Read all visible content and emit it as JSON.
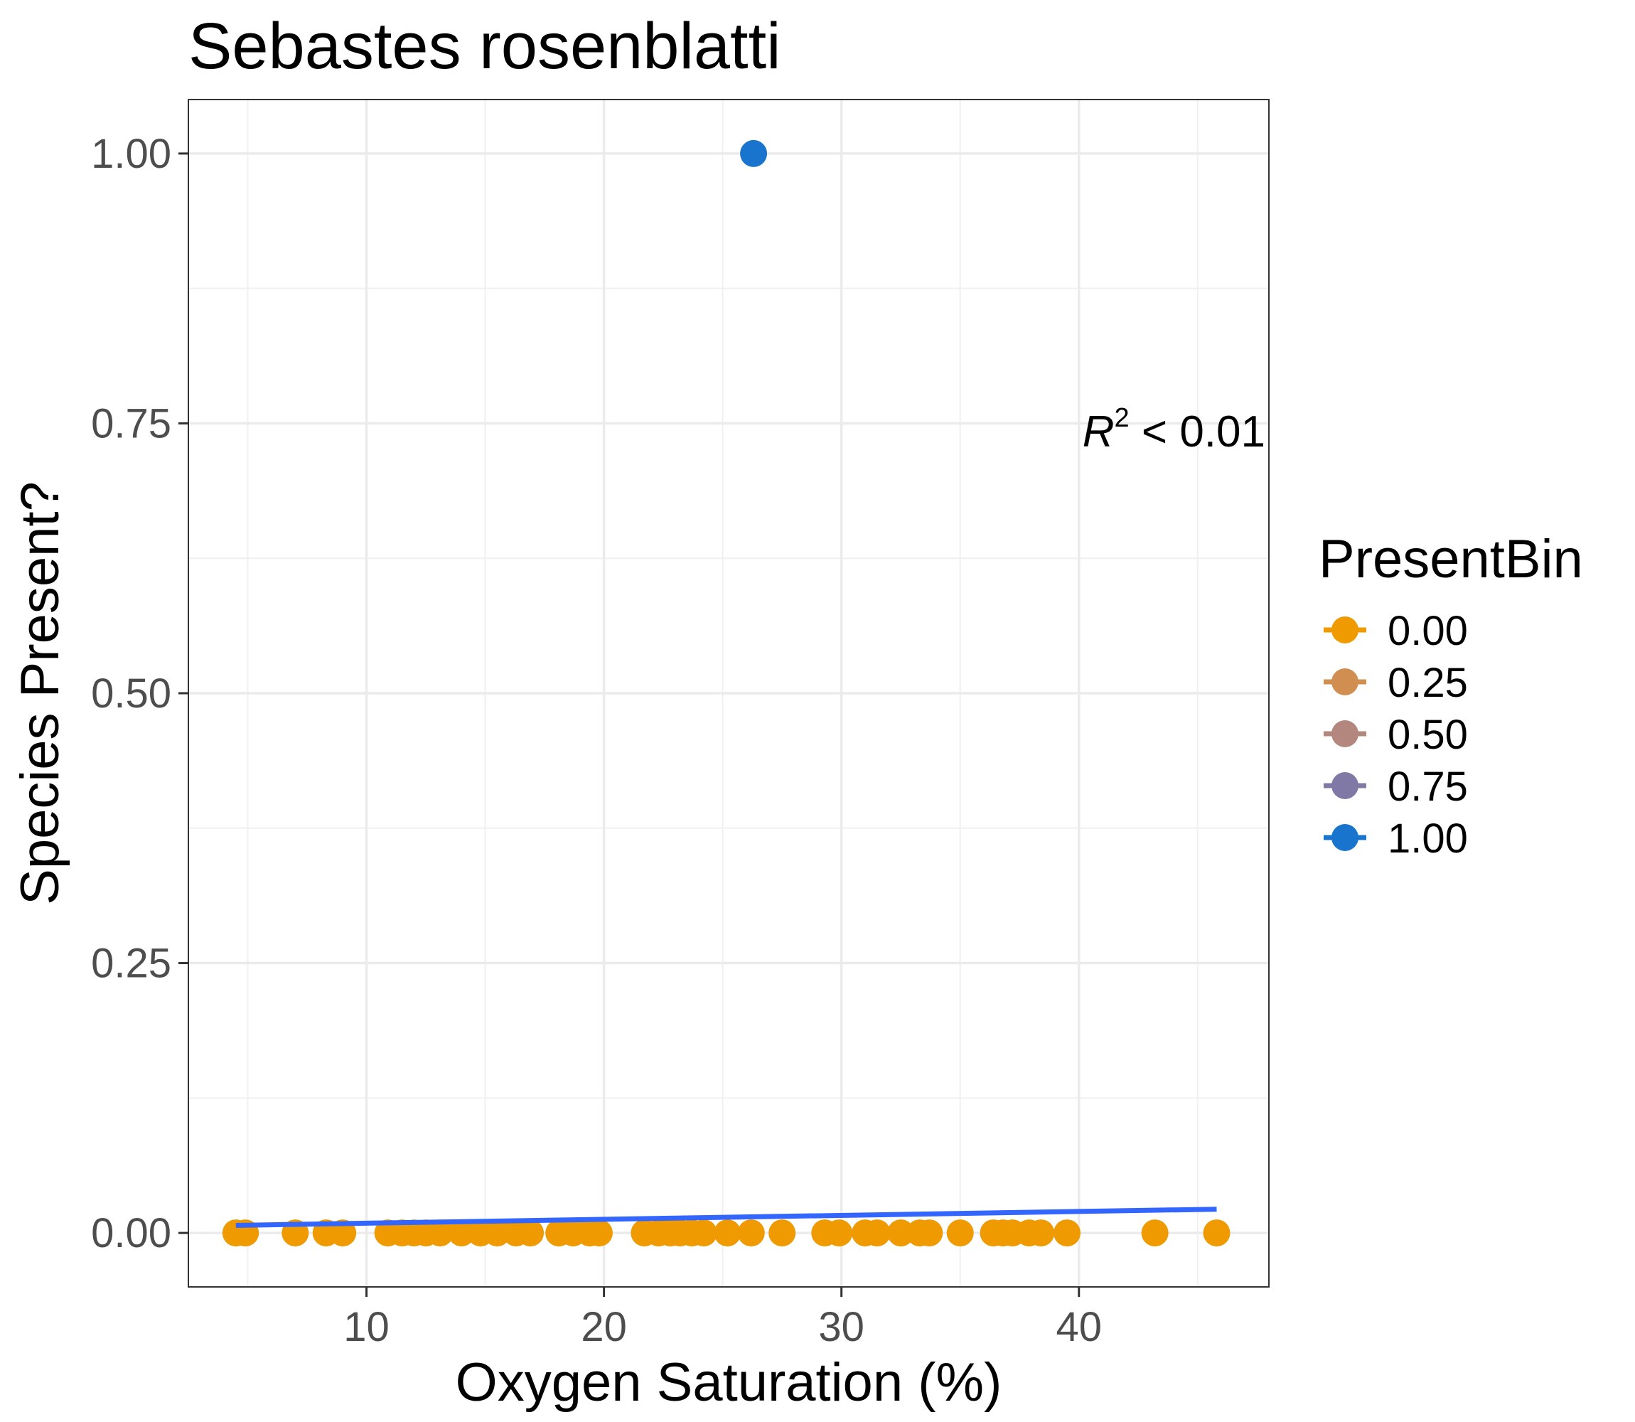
{
  "chart_data": {
    "type": "scatter",
    "title": "Sebastes rosenblatti",
    "xlabel": "Oxygen Saturation (%)",
    "ylabel": "Species Present?",
    "xlim": [
      2.5,
      48
    ],
    "ylim": [
      -0.05,
      1.05
    ],
    "x_ticks": [
      10,
      20,
      30,
      40
    ],
    "x_tick_labels": [
      "10",
      "20",
      "30",
      "40"
    ],
    "y_ticks": [
      0,
      0.25,
      0.5,
      0.75,
      1
    ],
    "y_tick_labels": [
      "0.00",
      "0.25",
      "0.50",
      "0.75",
      "1.00"
    ],
    "grid": true,
    "legend": {
      "title": "PresentBin",
      "placement": "right",
      "entries": [
        {
          "label": "0.00",
          "color": "#EE9A00"
        },
        {
          "label": "0.25",
          "color": "#D18E51"
        },
        {
          "label": "0.50",
          "color": "#B3877D"
        },
        {
          "label": "0.75",
          "color": "#8079A6"
        },
        {
          "label": "1.00",
          "color": "#1874CD"
        }
      ]
    },
    "annotation": {
      "r_letter": "R",
      "r_exponent": "2",
      "text": " < 0.01"
    },
    "points": {
      "x": [
        4.5,
        4.9,
        7.0,
        8.3,
        9.0,
        10.9,
        11.5,
        12.0,
        12.5,
        13.1,
        14.0,
        14.8,
        15.5,
        16.3,
        16.9,
        18.1,
        18.7,
        19.4,
        19.8,
        21.7,
        22.3,
        22.8,
        23.2,
        23.7,
        24.2,
        25.2,
        26.2,
        27.5,
        29.3,
        29.9,
        31.0,
        31.5,
        32.5,
        33.3,
        33.7,
        35.0,
        36.4,
        36.8,
        37.2,
        37.9,
        38.4,
        39.5,
        43.2,
        45.8,
        26.3
      ],
      "y": [
        0,
        0,
        0,
        0,
        0,
        0,
        0,
        0,
        0,
        0,
        0,
        0,
        0,
        0,
        0,
        0,
        0,
        0,
        0,
        0,
        0,
        0,
        0,
        0,
        0,
        0,
        0,
        0,
        0,
        0,
        0,
        0,
        0,
        0,
        0,
        0,
        0,
        0,
        0,
        0,
        0,
        0,
        0,
        0,
        1
      ]
    },
    "fit_line": {
      "color": "#3366FF",
      "x": [
        4.5,
        45.8
      ],
      "y": [
        0.007,
        0.022
      ]
    }
  }
}
